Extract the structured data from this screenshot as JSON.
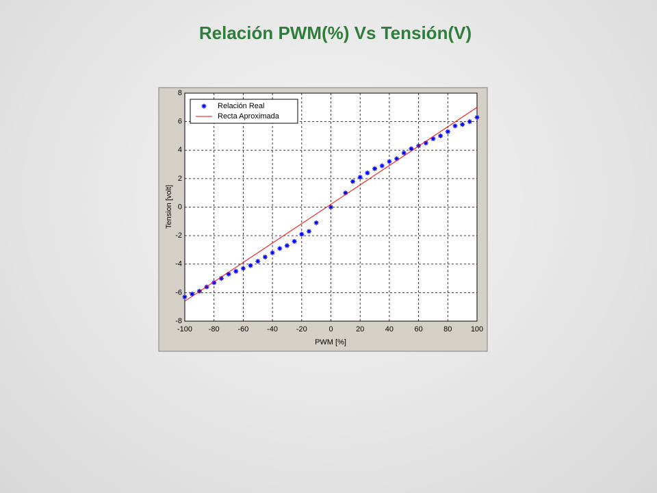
{
  "chart_data": {
    "type": "scatter",
    "title": "Relación PWM(%) Vs Tensión(V)",
    "xlabel": "PWM [%]",
    "ylabel": "Tension [volt]",
    "xlim": [
      -100,
      100
    ],
    "ylim": [
      -8,
      8
    ],
    "xticks": [
      -100,
      -80,
      -60,
      -40,
      -20,
      0,
      20,
      40,
      60,
      80,
      100
    ],
    "yticks": [
      -8,
      -6,
      -4,
      -2,
      0,
      2,
      4,
      6,
      8
    ],
    "grid": true,
    "series": [
      {
        "name": "Relación Real",
        "type": "scatter",
        "color": "#0000ff",
        "x": [
          -100,
          -95,
          -90,
          -85,
          -80,
          -75,
          -70,
          -65,
          -60,
          -55,
          -50,
          -45,
          -40,
          -35,
          -30,
          -25,
          -20,
          -15,
          -10,
          0,
          10,
          15,
          20,
          25,
          30,
          35,
          40,
          45,
          50,
          55,
          60,
          65,
          70,
          75,
          80,
          85,
          90,
          95,
          100
        ],
        "values": [
          -6.3,
          -6.1,
          -5.9,
          -5.6,
          -5.3,
          -5.0,
          -4.7,
          -4.5,
          -4.3,
          -4.1,
          -3.8,
          -3.5,
          -3.2,
          -2.9,
          -2.7,
          -2.4,
          -1.9,
          -1.7,
          -1.1,
          0,
          1.0,
          1.8,
          2.1,
          2.4,
          2.7,
          2.9,
          3.2,
          3.4,
          3.8,
          4.1,
          4.3,
          4.5,
          4.8,
          5.0,
          5.3,
          5.7,
          5.8,
          6.0,
          6.3
        ]
      },
      {
        "name": "Recta Aproximada",
        "type": "line",
        "color": "#ff0000",
        "x": [
          -100,
          100
        ],
        "values": [
          -6.6,
          7.0
        ]
      }
    ]
  }
}
